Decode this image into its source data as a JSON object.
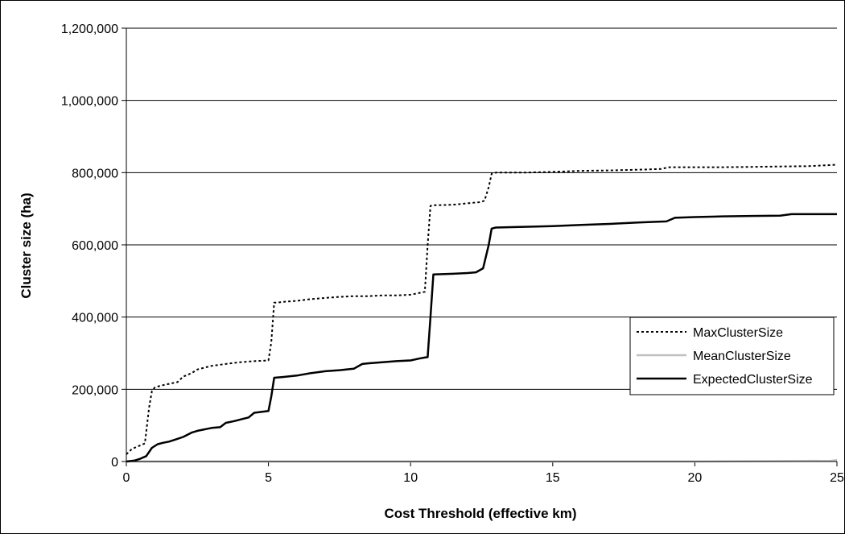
{
  "chart_data": {
    "type": "line",
    "title": "",
    "xlabel": "Cost Threshold (effective km)",
    "ylabel": "Cluster size (ha)",
    "xlim": [
      0,
      25
    ],
    "ylim": [
      0,
      1200000
    ],
    "xticks": [
      0,
      5,
      10,
      15,
      20,
      25
    ],
    "yticks": [
      0,
      200000,
      400000,
      600000,
      800000,
      1000000,
      1200000
    ],
    "xtick_labels": [
      "0",
      "5",
      "10",
      "15",
      "20",
      "25"
    ],
    "ytick_labels": [
      "0",
      "200,000",
      "400,000",
      "600,000",
      "800,000",
      "1,000,000",
      "1,200,000"
    ],
    "grid": "horizontal",
    "legend_position": "right",
    "series": [
      {
        "name": "MaxClusterSize",
        "style": "dotted",
        "color": "#000000",
        "x": [
          0,
          0.2,
          0.5,
          0.65,
          0.8,
          0.9,
          1.0,
          1.2,
          1.5,
          1.8,
          2.0,
          2.3,
          2.5,
          3.0,
          3.5,
          4.0,
          4.5,
          5.0,
          5.1,
          5.2,
          5.3,
          5.5,
          6.0,
          6.5,
          7.0,
          7.5,
          8.0,
          8.5,
          9.0,
          9.5,
          10.0,
          10.5,
          10.6,
          10.7,
          10.8,
          11.0,
          11.5,
          12.0,
          12.4,
          12.6,
          12.75,
          12.85,
          13.0,
          14.0,
          15.0,
          16.0,
          17.0,
          18.0,
          18.8,
          19.1,
          20.0,
          21.0,
          22.0,
          23.0,
          24.0,
          25.0
        ],
        "y": [
          20000,
          35000,
          45000,
          50000,
          150000,
          195000,
          205000,
          210000,
          215000,
          220000,
          235000,
          245000,
          255000,
          265000,
          270000,
          275000,
          278000,
          280000,
          330000,
          440000,
          440000,
          442000,
          445000,
          450000,
          453000,
          456000,
          458000,
          458000,
          460000,
          460000,
          462000,
          470000,
          600000,
          708000,
          710000,
          710000,
          711000,
          715000,
          718000,
          722000,
          760000,
          797000,
          800000,
          800000,
          802000,
          805000,
          806000,
          808000,
          810000,
          815000,
          815000,
          815000,
          816000,
          817000,
          818000,
          822000
        ]
      },
      {
        "name": "MeanClusterSize",
        "style": "solid",
        "color": "#bfbfbf",
        "x": [
          0,
          5,
          10,
          15,
          20,
          24.8,
          25.0
        ],
        "y": [
          0,
          0,
          0,
          0,
          0,
          2000,
          4000
        ]
      },
      {
        "name": "ExpectedClusterSize",
        "style": "solid",
        "color": "#000000",
        "x": [
          0,
          0.3,
          0.5,
          0.7,
          0.9,
          1.1,
          1.3,
          1.5,
          1.7,
          2.0,
          2.3,
          2.5,
          3.0,
          3.3,
          3.5,
          3.8,
          4.1,
          4.3,
          4.5,
          5.0,
          5.1,
          5.2,
          5.5,
          6.0,
          6.5,
          7.0,
          7.5,
          8.0,
          8.3,
          8.5,
          9.0,
          9.5,
          10.0,
          10.3,
          10.5,
          10.6,
          10.7,
          10.8,
          11.5,
          12.0,
          12.3,
          12.55,
          12.75,
          12.85,
          13.0,
          14.0,
          15.0,
          16.0,
          17.0,
          18.0,
          19.0,
          19.3,
          20.0,
          21.0,
          22.0,
          23.0,
          23.4,
          24.0,
          25.0
        ],
        "y": [
          0,
          3000,
          8000,
          15000,
          38000,
          48000,
          52000,
          55000,
          60000,
          68000,
          80000,
          85000,
          93000,
          95000,
          107000,
          112000,
          118000,
          122000,
          135000,
          140000,
          180000,
          232000,
          234000,
          238000,
          245000,
          250000,
          253000,
          257000,
          270000,
          272000,
          275000,
          278000,
          280000,
          285000,
          288000,
          289000,
          400000,
          518000,
          520000,
          522000,
          524000,
          535000,
          600000,
          645000,
          648000,
          650000,
          652000,
          655000,
          658000,
          662000,
          665000,
          675000,
          677000,
          679000,
          680000,
          681000,
          685000,
          685000,
          685000
        ]
      }
    ]
  }
}
